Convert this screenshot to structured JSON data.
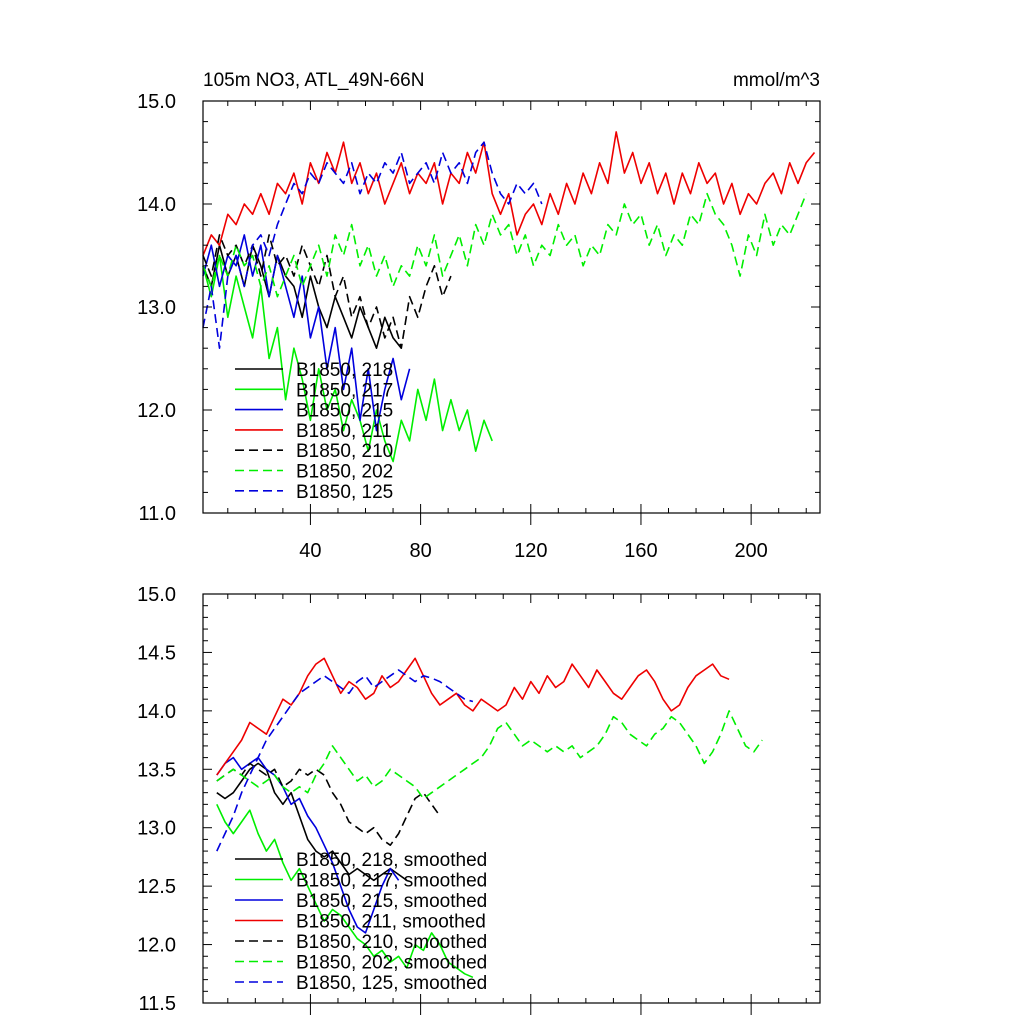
{
  "figure": {
    "top_title_left": "105m NO3, ATL_49N-66N",
    "top_title_right": "mmol/m^3"
  },
  "styles": {
    "B1850, 218": {
      "color": "#000000",
      "dash": "solid"
    },
    "B1850, 217": {
      "color": "#00ee00",
      "dash": "solid"
    },
    "B1850, 215": {
      "color": "#0000dd",
      "dash": "solid"
    },
    "B1850, 211": {
      "color": "#ee0000",
      "dash": "solid"
    },
    "B1850, 210": {
      "color": "#000000",
      "dash": "dashed"
    },
    "B1850, 202": {
      "color": "#00ee00",
      "dash": "dashed"
    },
    "B1850, 125": {
      "color": "#0000dd",
      "dash": "dashed"
    }
  },
  "chart_data": [
    {
      "type": "line",
      "panel": "top",
      "title": "105m NO3, ATL_49N-66N",
      "units": "mmol/m^3",
      "xlim": [
        1,
        225
      ],
      "ylim": [
        11.0,
        15.0
      ],
      "xticks": [
        40,
        80,
        120,
        160,
        200
      ],
      "yticks": [
        11.0,
        12.0,
        13.0,
        14.0,
        15.0
      ],
      "yticklabels": [
        "11.0",
        "12.0",
        "13.0",
        "14.0",
        "15.0"
      ],
      "legend_position": "bottom-left",
      "legend": [
        "B1850, 218",
        "B1850, 217",
        "B1850, 215",
        "B1850, 211",
        "B1850, 210",
        "B1850, 202",
        "B1850, 125"
      ],
      "series": [
        {
          "name": "B1850, 218",
          "x_start": 1,
          "x_step": 3,
          "values": [
            13.4,
            13.2,
            13.6,
            13.3,
            13.5,
            13.2,
            13.6,
            13.4,
            13.1,
            13.5,
            13.3,
            13.2,
            12.9,
            13.3,
            13.0,
            12.8,
            13.1,
            12.9,
            12.7,
            13.0,
            12.8,
            12.6,
            12.9,
            12.7,
            12.6
          ]
        },
        {
          "name": "B1850, 217",
          "x_start": 1,
          "x_step": 3,
          "values": [
            13.4,
            13.1,
            13.5,
            12.9,
            13.3,
            13.0,
            12.7,
            13.2,
            12.5,
            12.8,
            12.1,
            12.6,
            12.3,
            11.9,
            12.4,
            12.0,
            12.2,
            11.8,
            12.1,
            11.9,
            11.6,
            12.0,
            11.7,
            11.5,
            11.9,
            11.7,
            12.2,
            11.9,
            12.3,
            11.8,
            12.1,
            11.8,
            12.0,
            11.6,
            11.9,
            11.7
          ]
        },
        {
          "name": "B1850, 215",
          "x_start": 1,
          "x_step": 3,
          "values": [
            13.3,
            13.6,
            13.2,
            13.5,
            13.4,
            13.7,
            13.3,
            13.6,
            13.1,
            13.5,
            13.2,
            12.9,
            13.3,
            12.7,
            13.0,
            12.4,
            12.8,
            12.2,
            12.6,
            11.9,
            12.4,
            11.8,
            12.2,
            12.5,
            12.1,
            12.4
          ]
        },
        {
          "name": "B1850, 211",
          "x_start": 1,
          "x_step": 3,
          "values": [
            13.5,
            13.7,
            13.6,
            13.9,
            13.8,
            14.0,
            13.9,
            14.1,
            13.9,
            14.2,
            14.1,
            14.3,
            14.0,
            14.4,
            14.2,
            14.5,
            14.3,
            14.6,
            14.2,
            14.4,
            14.1,
            14.3,
            14.0,
            14.2,
            14.4,
            14.1,
            14.3,
            14.2,
            14.4,
            14.0,
            14.3,
            14.2,
            14.5,
            14.3,
            14.6,
            14.1,
            13.9,
            14.1,
            13.7,
            13.9,
            14.0,
            13.8,
            14.1,
            13.9,
            14.2,
            14.0,
            14.3,
            14.1,
            14.4,
            14.2,
            14.7,
            14.3,
            14.5,
            14.2,
            14.4,
            14.1,
            14.3,
            14.0,
            14.3,
            14.1,
            14.4,
            14.2,
            14.3,
            14.0,
            14.2,
            13.9,
            14.1,
            14.0,
            14.2,
            14.3,
            14.1,
            14.4,
            14.2,
            14.4,
            14.5
          ]
        },
        {
          "name": "B1850, 210",
          "x_start": 1,
          "x_step": 3,
          "values": [
            13.5,
            13.3,
            13.7,
            13.5,
            13.6,
            13.4,
            13.6,
            13.3,
            13.7,
            13.4,
            13.5,
            13.3,
            13.6,
            13.4,
            13.2,
            13.5,
            13.1,
            13.3,
            12.9,
            13.1,
            12.8,
            13.0,
            12.7,
            12.9,
            12.6,
            13.1,
            12.9,
            13.2,
            13.4,
            13.1,
            13.3
          ]
        },
        {
          "name": "B1850, 202",
          "x_start": 1,
          "x_step": 3,
          "values": [
            13.4,
            13.2,
            13.5,
            13.3,
            13.6,
            13.4,
            13.5,
            13.2,
            13.4,
            13.1,
            13.3,
            13.5,
            13.2,
            13.4,
            13.6,
            13.3,
            13.7,
            13.5,
            13.8,
            13.4,
            13.6,
            13.3,
            13.5,
            13.2,
            13.4,
            13.3,
            13.6,
            13.4,
            13.7,
            13.3,
            13.5,
            13.7,
            13.4,
            13.8,
            13.6,
            13.9,
            13.7,
            13.8,
            13.5,
            13.7,
            13.4,
            13.6,
            13.5,
            13.8,
            13.6,
            13.7,
            13.4,
            13.6,
            13.5,
            13.8,
            13.7,
            14.0,
            13.8,
            13.9,
            13.6,
            13.8,
            13.5,
            13.7,
            13.6,
            13.9,
            13.8,
            14.1,
            13.9,
            13.8,
            13.6,
            13.3,
            13.7,
            13.5,
            13.9,
            13.6,
            13.8,
            13.7,
            13.9,
            14.1
          ]
        },
        {
          "name": "B1850, 125",
          "x_start": 1,
          "x_step": 3,
          "values": [
            12.8,
            13.2,
            12.6,
            13.3,
            13.5,
            13.2,
            13.6,
            13.7,
            13.5,
            13.8,
            14.0,
            14.2,
            14.1,
            14.3,
            14.2,
            14.4,
            14.3,
            14.2,
            14.4,
            14.1,
            14.3,
            14.2,
            14.4,
            14.3,
            14.5,
            14.2,
            14.3,
            14.4,
            14.2,
            14.5,
            14.3,
            14.4,
            14.2,
            14.5,
            14.6,
            14.3,
            14.1,
            14.0,
            14.2,
            14.1,
            14.2,
            14.0
          ]
        }
      ]
    },
    {
      "type": "line",
      "panel": "bottom",
      "xlim": [
        1,
        225
      ],
      "ylim": [
        11.5,
        15.0
      ],
      "xticks": [
        40,
        80,
        120,
        160,
        200
      ],
      "yticks": [
        11.5,
        12.0,
        12.5,
        13.0,
        13.5,
        14.0,
        14.5,
        15.0
      ],
      "yticklabels": [
        "11.5",
        "12.0",
        "12.5",
        "13.0",
        "13.5",
        "14.0",
        "14.5",
        "15.0"
      ],
      "legend_position": "bottom-left",
      "legend": [
        "B1850, 218, smoothed",
        "B1850, 217, smoothed",
        "B1850, 215, smoothed",
        "B1850, 211, smoothed",
        "B1850, 210, smoothed",
        "B1850, 202, smoothed",
        "B1850, 125, smoothed"
      ],
      "series": [
        {
          "name": "B1850, 218",
          "x_start": 6,
          "x_step": 3,
          "values": [
            13.3,
            13.25,
            13.3,
            13.4,
            13.5,
            13.55,
            13.5,
            13.3,
            13.2,
            13.3,
            13.1,
            12.9,
            12.8,
            12.75,
            12.8,
            12.7,
            12.6,
            12.65,
            12.6,
            12.55,
            12.6,
            12.65,
            12.6,
            12.55
          ]
        },
        {
          "name": "B1850, 217",
          "x_start": 6,
          "x_step": 3,
          "values": [
            13.2,
            13.05,
            12.95,
            13.05,
            13.15,
            12.95,
            12.8,
            12.9,
            12.7,
            12.55,
            12.65,
            12.5,
            12.35,
            12.2,
            12.3,
            12.25,
            12.15,
            12.05,
            12.0,
            11.9,
            11.95,
            11.85,
            11.9,
            11.8,
            12.0,
            11.95,
            12.1,
            12.0,
            11.85,
            11.8,
            11.75,
            11.72
          ]
        },
        {
          "name": "B1850, 215",
          "x_start": 6,
          "x_step": 3,
          "values": [
            13.45,
            13.55,
            13.6,
            13.5,
            13.55,
            13.6,
            13.5,
            13.45,
            13.35,
            13.2,
            13.25,
            13.1,
            13.0,
            12.85,
            12.7,
            12.5,
            12.3,
            12.15,
            12.1,
            12.3,
            12.5,
            12.65,
            12.55
          ]
        },
        {
          "name": "B1850, 211",
          "x_start": 6,
          "x_step": 3,
          "values": [
            13.45,
            13.55,
            13.65,
            13.75,
            13.9,
            13.85,
            13.8,
            13.95,
            14.1,
            14.05,
            14.15,
            14.3,
            14.4,
            14.45,
            14.3,
            14.15,
            14.25,
            14.2,
            14.1,
            14.15,
            14.3,
            14.2,
            14.25,
            14.35,
            14.45,
            14.3,
            14.15,
            14.05,
            14.1,
            14.15,
            14.05,
            14.0,
            14.1,
            14.05,
            14.0,
            14.05,
            14.2,
            14.1,
            14.25,
            14.15,
            14.3,
            14.2,
            14.25,
            14.4,
            14.3,
            14.2,
            14.35,
            14.25,
            14.15,
            14.1,
            14.2,
            14.3,
            14.35,
            14.25,
            14.1,
            14.0,
            14.05,
            14.2,
            14.3,
            14.35,
            14.4,
            14.3,
            14.27
          ]
        },
        {
          "name": "B1850, 210",
          "x_start": 6,
          "x_step": 3,
          "values": [
            13.4,
            13.45,
            13.5,
            13.45,
            13.55,
            13.5,
            13.45,
            13.5,
            13.35,
            13.4,
            13.5,
            13.45,
            13.5,
            13.45,
            13.3,
            13.2,
            13.05,
            13.0,
            12.95,
            13.0,
            12.9,
            12.85,
            12.95,
            13.1,
            13.25,
            13.3,
            13.2,
            13.1
          ]
        },
        {
          "name": "B1850, 202",
          "x_start": 6,
          "x_step": 3,
          "values": [
            13.4,
            13.45,
            13.5,
            13.45,
            13.4,
            13.35,
            13.4,
            13.45,
            13.35,
            13.3,
            13.35,
            13.3,
            13.45,
            13.55,
            13.7,
            13.6,
            13.5,
            13.4,
            13.45,
            13.35,
            13.4,
            13.5,
            13.45,
            13.4,
            13.35,
            13.25,
            13.3,
            13.35,
            13.4,
            13.45,
            13.5,
            13.55,
            13.6,
            13.7,
            13.85,
            13.9,
            13.8,
            13.7,
            13.75,
            13.7,
            13.65,
            13.7,
            13.65,
            13.7,
            13.6,
            13.65,
            13.7,
            13.8,
            13.95,
            13.9,
            13.8,
            13.75,
            13.7,
            13.8,
            13.85,
            13.95,
            13.9,
            13.8,
            13.7,
            13.55,
            13.65,
            13.8,
            14.0,
            13.85,
            13.7,
            13.65,
            13.75
          ]
        },
        {
          "name": "B1850, 125",
          "x_start": 6,
          "x_step": 3,
          "values": [
            12.8,
            12.95,
            13.1,
            13.3,
            13.45,
            13.6,
            13.75,
            13.85,
            13.95,
            14.05,
            14.15,
            14.2,
            14.25,
            14.3,
            14.25,
            14.2,
            14.15,
            14.25,
            14.3,
            14.2,
            14.25,
            14.3,
            14.35,
            14.3,
            14.25,
            14.3,
            14.28,
            14.25,
            14.2,
            14.15,
            14.1,
            14.08
          ]
        }
      ]
    }
  ]
}
